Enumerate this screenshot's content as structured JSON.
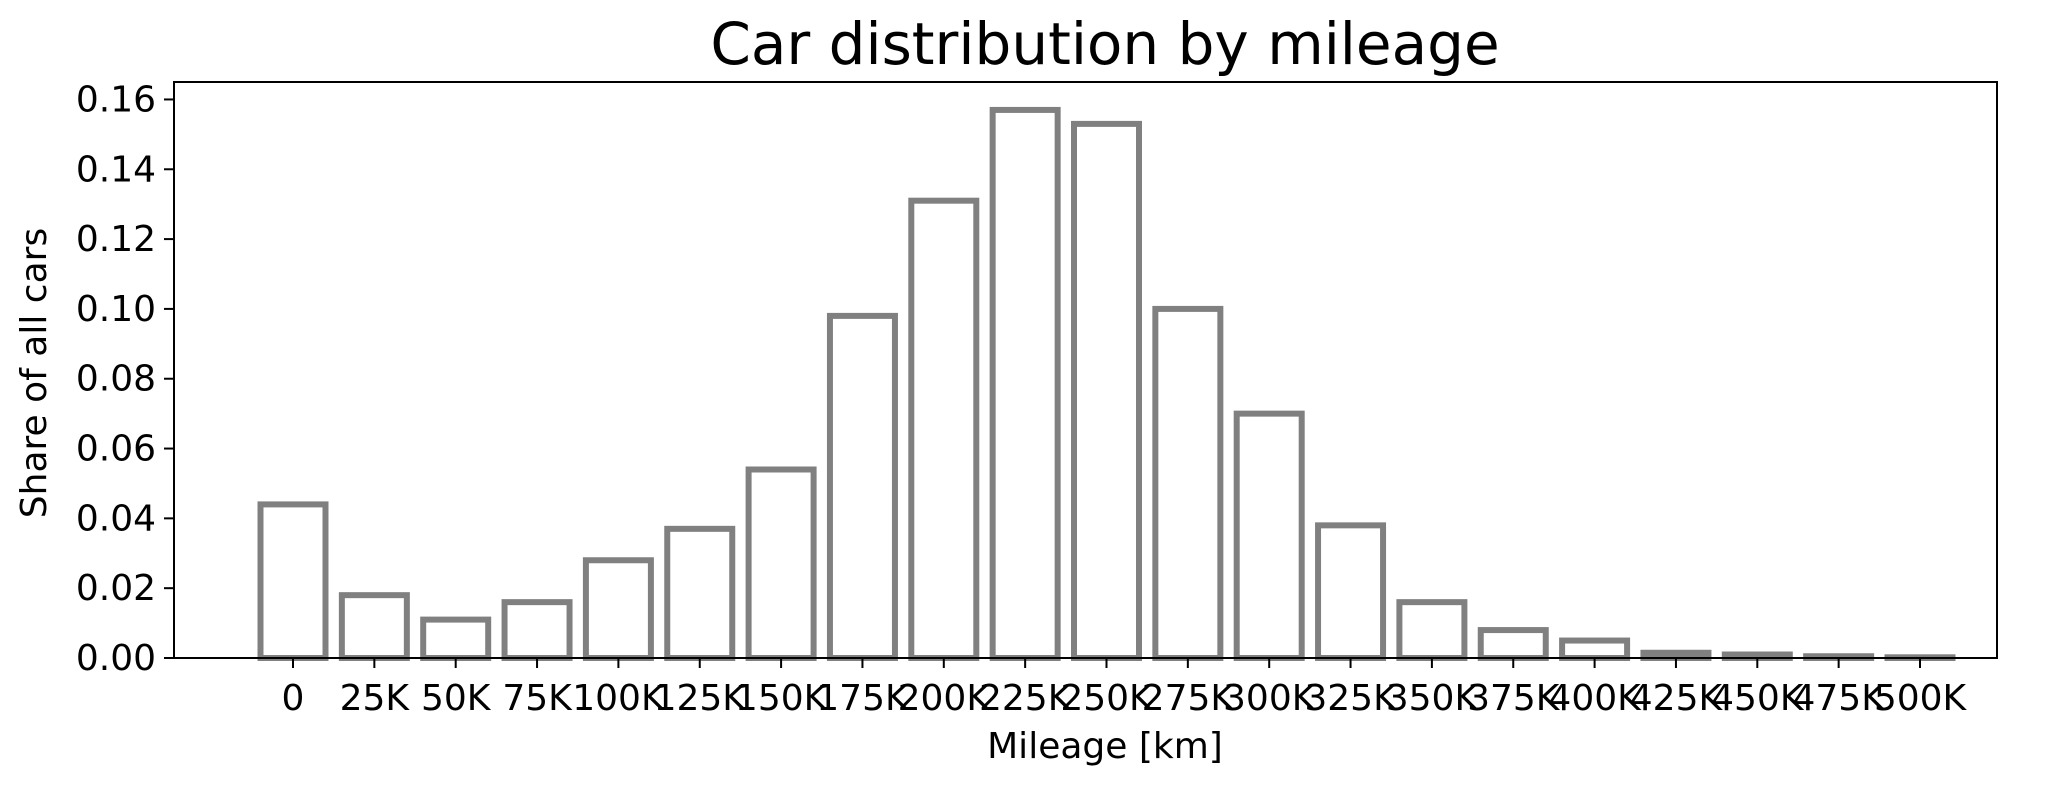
{
  "chart_data": {
    "type": "bar",
    "title": "Car distribution by mileage",
    "xlabel": "Mileage [km]",
    "ylabel": "Share of all cars",
    "categories": [
      "0",
      "25K",
      "50K",
      "75K",
      "100K",
      "125K",
      "150K",
      "175K",
      "200K",
      "225K",
      "250K",
      "275K",
      "300K",
      "325K",
      "350K",
      "375K",
      "400K",
      "425K",
      "450K",
      "475K",
      "500K"
    ],
    "values": [
      0.044,
      0.018,
      0.011,
      0.016,
      0.028,
      0.037,
      0.054,
      0.098,
      0.131,
      0.157,
      0.153,
      0.1,
      0.07,
      0.038,
      0.016,
      0.008,
      0.005,
      0.0015,
      0.001,
      0.0005,
      0.0002
    ],
    "ylim": [
      0,
      0.165
    ],
    "yticks": [
      "0.00",
      "0.02",
      "0.04",
      "0.06",
      "0.08",
      "0.10",
      "0.12",
      "0.14",
      "0.16"
    ],
    "grid": false,
    "legend": "none",
    "colors": {
      "bar_edge": "#808080",
      "bar_fill": "#ffffff",
      "axis": "#000000"
    }
  }
}
